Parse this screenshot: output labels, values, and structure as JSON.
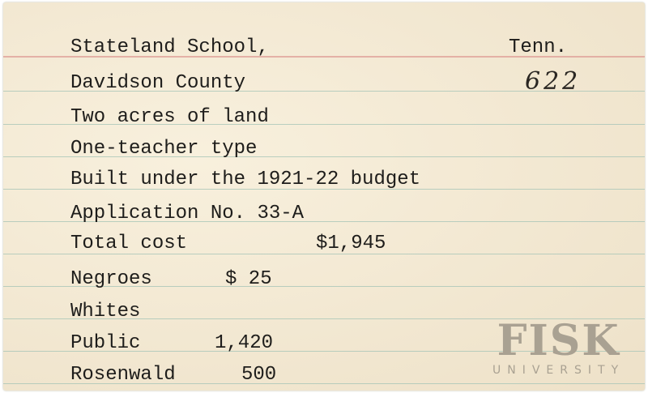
{
  "card": {
    "title_line": "Stateland School,",
    "state": "Tenn.",
    "card_number": "622",
    "county": "Davidson County",
    "land": "Two acres of land",
    "type": "One-teacher type",
    "budget": "Built under the 1921-22 budget",
    "application": "Application No. 33-A",
    "total_cost_label": "Total cost",
    "total_cost_value": "$1,945",
    "contributions": [
      {
        "label": "Negroes",
        "value": "$ 25"
      },
      {
        "label": "Whites",
        "value": ""
      },
      {
        "label": "Public",
        "value": "1,420"
      },
      {
        "label": "Rosenwald",
        "value": "500"
      }
    ]
  },
  "watermark": {
    "name": "FISK",
    "sub": "UNIVERSITY"
  }
}
